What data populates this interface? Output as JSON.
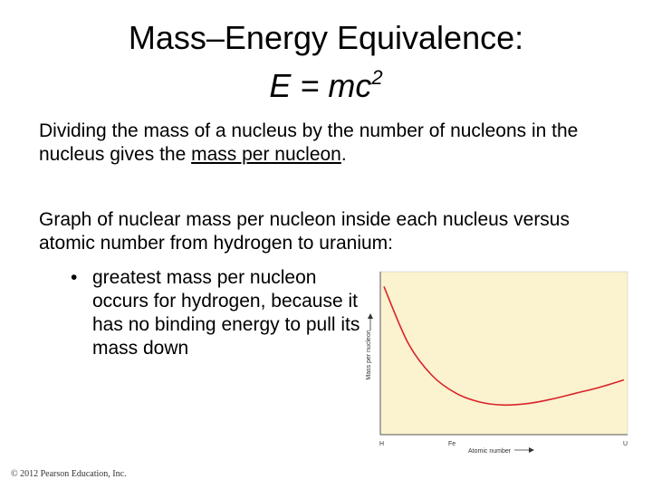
{
  "slide": {
    "title_line1": "Mass–Energy Equivalence:",
    "title_formula": "E = mc",
    "title_superscript": "2",
    "paragraph1_before": "Dividing the mass of a nucleus by the number of nucleons in the nucleus gives the ",
    "paragraph1_underlined": "mass per nucleon",
    "paragraph1_after": ".",
    "paragraph2": "Graph of nuclear mass per nucleon inside each nucleus versus atomic number from hydrogen to uranium:",
    "bullet_marker": "•",
    "bullet_text": "greatest mass per nucleon occurs for hydrogen, because it has no binding energy to pull its mass down",
    "copyright": "© 2012 Pearson Education, Inc."
  },
  "chart_data": {
    "type": "line",
    "xlabel": "Atomic number",
    "ylabel": "Mass per nucleon",
    "x_tick_labels": [
      "H",
      "Fe",
      "U"
    ],
    "series": [
      {
        "values": [
          1.0,
          0.62,
          0.4,
          0.28,
          0.22,
          0.2,
          0.21,
          0.24,
          0.28,
          0.32,
          0.37
        ]
      }
    ],
    "ylim": [
      0,
      1.1
    ],
    "grid": false,
    "colors": {
      "background": "#fbf2cf",
      "line": "#d8232a",
      "axis": "#555555"
    }
  }
}
